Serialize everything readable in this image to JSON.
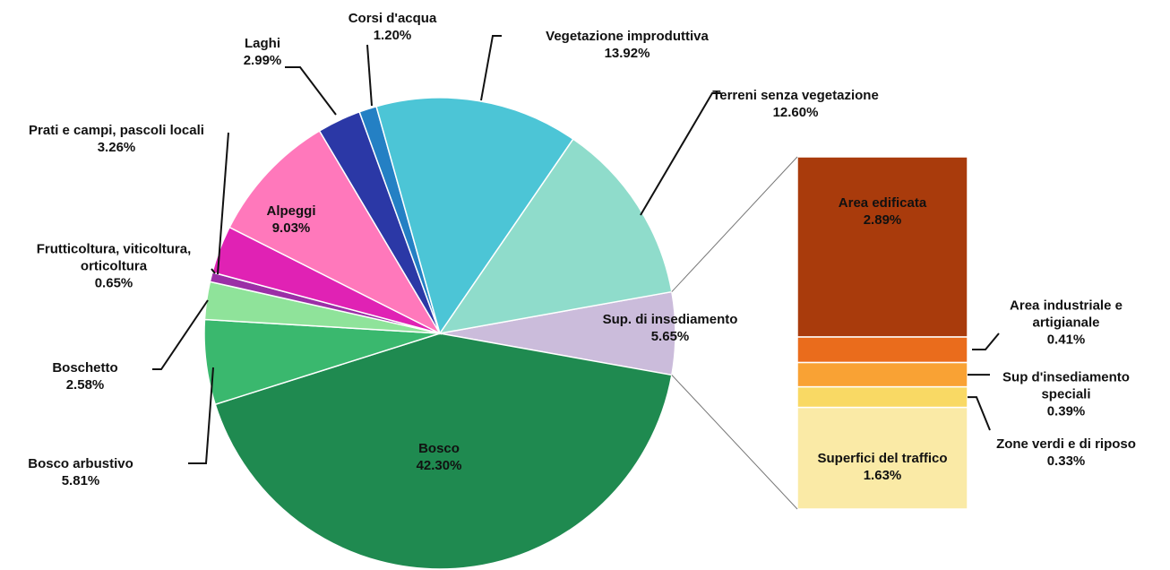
{
  "chart_data": {
    "type": "pie_of_bar",
    "categories": [
      "Sup. di insediamento",
      "Bosco",
      "Bosco arbustivo",
      "Boschetto",
      "Frutticoltura, viticoltura, orticoltura",
      "Prati e campi, pascoli locali",
      "Alpeggi",
      "Laghi",
      "Corsi d'acqua",
      "Vegetazione improduttiva",
      "Terreni senza vegetazione"
    ],
    "values": [
      5.65,
      42.3,
      5.81,
      2.58,
      0.65,
      3.26,
      9.03,
      2.99,
      1.2,
      13.92,
      12.6
    ],
    "value_labels": [
      "5.65%",
      "42.30%",
      "5.81%",
      "2.58%",
      "0.65%",
      "3.26%",
      "9.03%",
      "2.99%",
      "1.20%",
      "13.92%",
      "12.60%"
    ],
    "colors": [
      "#cbbcdb",
      "#1f8a50",
      "#3ab86e",
      "#8fe39a",
      "#9b2fa6",
      "#e022b4",
      "#ff78bb",
      "#2b38a6",
      "#2480c4",
      "#4cc5d6",
      "#8fdccb"
    ],
    "bar_categories": [
      "Area edificata",
      "Area industriale e artigianale",
      "Sup d'insediamento speciali",
      "Zone verdi e di riposo",
      "Superfici del traffico"
    ],
    "bar_values": [
      2.89,
      0.41,
      0.39,
      0.33,
      1.63
    ],
    "bar_value_labels": [
      "2.89%",
      "0.41%",
      "0.39%",
      "0.33%",
      "1.63%"
    ],
    "bar_colors": [
      "#a93b0c",
      "#ea6c1c",
      "#f9a234",
      "#f9d964",
      "#faeaa6"
    ]
  }
}
